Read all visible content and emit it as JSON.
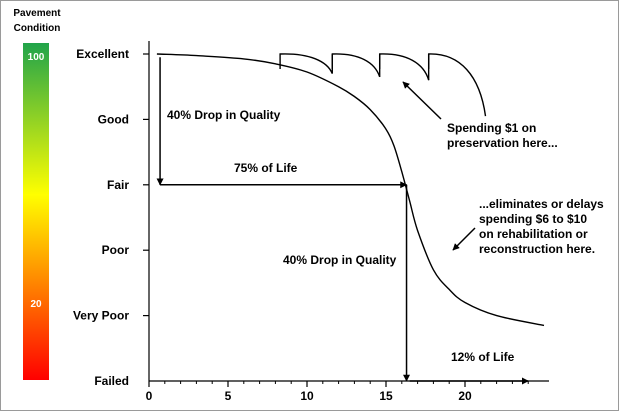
{
  "chart_data": {
    "type": "line",
    "title": "",
    "xlabel": "",
    "ylabel": "",
    "xlim": [
      0,
      25
    ],
    "x_ticks": [
      0,
      5,
      10,
      15,
      20
    ],
    "y_levels": [
      "Excellent",
      "Good",
      "Fair",
      "Poor",
      "Very Poor",
      "Failed"
    ],
    "y_level_scores": [
      100,
      80,
      60,
      40,
      20,
      0
    ],
    "grid": false,
    "condition_scale": {
      "title_lines": [
        "Pavement",
        "Condition"
      ],
      "top_label": "100",
      "bottom_label": "20",
      "colors": [
        "#21a44a",
        "#ffff00",
        "#ff0000"
      ]
    },
    "series": [
      {
        "x": [
          0.5,
          3,
          6,
          8,
          10,
          12,
          13,
          14,
          15,
          15.5,
          16,
          16.5,
          17,
          18,
          19,
          20,
          22,
          25
        ],
        "y": [
          100,
          99.5,
          98.5,
          97,
          94.5,
          90,
          87,
          83,
          77,
          72,
          64,
          55,
          46,
          34,
          28,
          24,
          20,
          17
        ]
      }
    ],
    "preservation_treatments": [
      {
        "x_start": 8.3,
        "x_end": 11.6,
        "y_peak": 100,
        "y_low": 94
      },
      {
        "x_start": 11.6,
        "x_end": 14.6,
        "y_peak": 100,
        "y_low": 93
      },
      {
        "x_start": 14.6,
        "x_end": 17.7,
        "y_peak": 100,
        "y_low": 92
      },
      {
        "x_start": 17.7,
        "x_end": 21.3,
        "y_peak": 100,
        "y_low": 81
      }
    ],
    "annotations": {
      "drop1": "40% Drop in Quality",
      "life1": "75% of Life",
      "drop2": "40% Drop in Quality",
      "life2": "12% of Life",
      "preservation_lines": [
        "Spending $1 on",
        "preservation here..."
      ],
      "rehab_lines": [
        "...eliminates or delays",
        "spending $6 to $10",
        "on rehabilitation or",
        "reconstruction here."
      ]
    },
    "arrows": [
      {
        "from": [
          0.7,
          99
        ],
        "to": [
          0.7,
          60
        ]
      },
      {
        "from": [
          0.7,
          60
        ],
        "to": [
          16.3,
          60
        ]
      },
      {
        "from": [
          16.3,
          60
        ],
        "to": [
          16.3,
          0
        ]
      },
      {
        "from": [
          16.5,
          0
        ],
        "to": [
          24,
          0
        ]
      }
    ]
  }
}
